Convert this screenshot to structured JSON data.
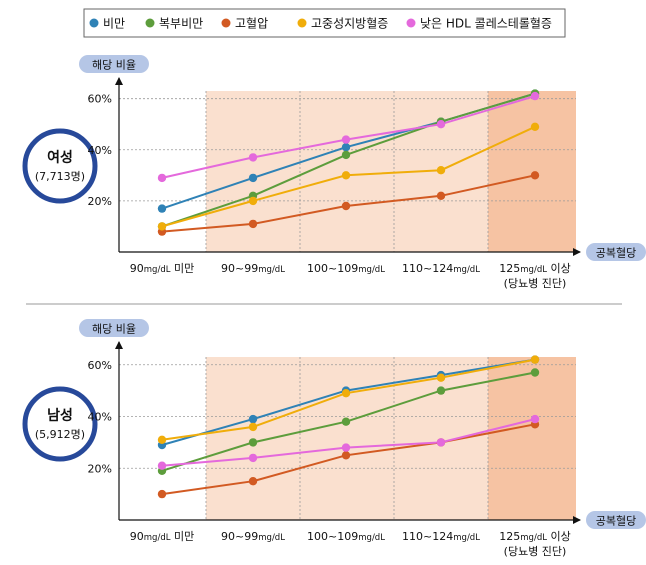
{
  "legend": [
    {
      "name": "비만",
      "color": "#2f82b6"
    },
    {
      "name": "복부비만",
      "color": "#5d9d3c"
    },
    {
      "name": "고혈압",
      "color": "#d25a22"
    },
    {
      "name": "고중성지방혈증",
      "color": "#f0ad0a"
    },
    {
      "name": "낮은 HDL 콜레스테롤혈증",
      "color": "#e469dc"
    }
  ],
  "x_axis": {
    "label": "공복혈당",
    "categories": [
      {
        "value": "90",
        "unit": "mg/dL",
        "suffix": " 미만",
        "line2": ""
      },
      {
        "value": "90~99",
        "unit": "mg/dL",
        "suffix": "",
        "line2": ""
      },
      {
        "value": "100~109",
        "unit": "mg/dL",
        "suffix": "",
        "line2": ""
      },
      {
        "value": "110~124",
        "unit": "mg/dL",
        "suffix": "",
        "line2": ""
      },
      {
        "value": "125",
        "unit": "mg/dL",
        "suffix": " 이상",
        "line2": "(당뇨병 진단)"
      }
    ]
  },
  "chart_data": [
    {
      "type": "line",
      "group_label": "여성",
      "group_count": "(7,713명)",
      "ylabel": "해당 비율",
      "xlabel": "공복혈당",
      "y_ticks": [
        "20%",
        "40%",
        "60%"
      ],
      "ylim": [
        0,
        63
      ],
      "categories": [
        "90mg/dL 미만",
        "90~99mg/dL",
        "100~109mg/dL",
        "110~124mg/dL",
        "125mg/dL 이상 (당뇨병 진단)"
      ],
      "series": [
        {
          "name": "비만",
          "color": "#2f82b6",
          "values": [
            17,
            29,
            41,
            51,
            62
          ]
        },
        {
          "name": "복부비만",
          "color": "#5d9d3c",
          "values": [
            10,
            22,
            38,
            51,
            62
          ]
        },
        {
          "name": "고혈압",
          "color": "#d25a22",
          "values": [
            8,
            11,
            18,
            22,
            30
          ]
        },
        {
          "name": "고중성지방혈증",
          "color": "#f0ad0a",
          "values": [
            10,
            20,
            30,
            32,
            49
          ]
        },
        {
          "name": "낮은 HDL 콜레스테롤혈증",
          "color": "#e469dc",
          "values": [
            29,
            37,
            44,
            50,
            61
          ]
        }
      ]
    },
    {
      "type": "line",
      "group_label": "남성",
      "group_count": "(5,912명)",
      "ylabel": "해당 비율",
      "xlabel": "공복혈당",
      "y_ticks": [
        "20%",
        "40%",
        "60%"
      ],
      "ylim": [
        0,
        63
      ],
      "categories": [
        "90mg/dL 미만",
        "90~99mg/dL",
        "100~109mg/dL",
        "110~124mg/dL",
        "125mg/dL 이상 (당뇨병 진단)"
      ],
      "series": [
        {
          "name": "비만",
          "color": "#2f82b6",
          "values": [
            29,
            39,
            50,
            56,
            62
          ]
        },
        {
          "name": "복부비만",
          "color": "#5d9d3c",
          "values": [
            19,
            30,
            38,
            50,
            57
          ]
        },
        {
          "name": "고혈압",
          "color": "#d25a22",
          "values": [
            10,
            15,
            25,
            30,
            37
          ]
        },
        {
          "name": "고중성지방혈증",
          "color": "#f0ad0a",
          "values": [
            31,
            36,
            49,
            55,
            62
          ]
        },
        {
          "name": "낮은 HDL 콜레스테롤혈증",
          "color": "#e469dc",
          "values": [
            21,
            24,
            28,
            30,
            39
          ]
        }
      ]
    }
  ]
}
